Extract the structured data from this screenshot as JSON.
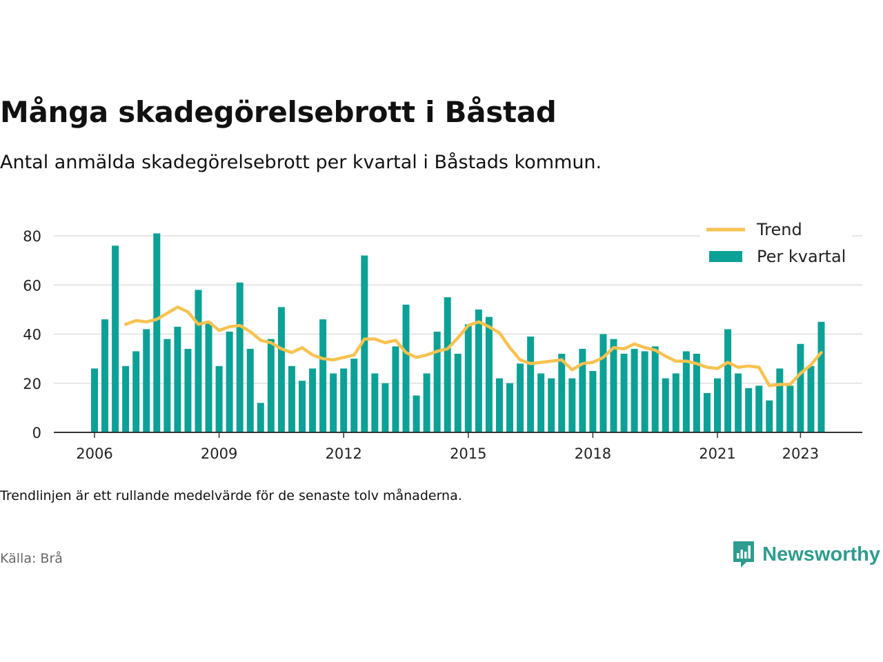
{
  "header": {
    "title": "Många skadegörelsebrott i Båstad",
    "subtitle": "Antal anmälda skadegörelsebrott per kvartal i Båstads kommun."
  },
  "footer": {
    "note": "Trendlinjen är ett rullande medelvärde för de senaste tolv månaderna.",
    "source": "Källa: Brå",
    "logo_text": "Newsworthy"
  },
  "colors": {
    "bars": "#0ca196",
    "trend": "#f7c24f",
    "grid": "#dddddd",
    "axis": "#333333",
    "brand": "#2e9c90"
  },
  "chart_data": {
    "type": "bar",
    "title": "Många skadegörelsebrott i Båstad",
    "xlabel": "",
    "ylabel": "",
    "ylim": [
      0,
      80
    ],
    "y_ticks": [
      0,
      20,
      40,
      60,
      80
    ],
    "x_ticks": [
      "2006",
      "2009",
      "2012",
      "2015",
      "2018",
      "2021",
      "2023"
    ],
    "grid": true,
    "legend_position": "top-right",
    "categories": [
      "2006 Q1",
      "2006 Q2",
      "2006 Q3",
      "2006 Q4",
      "2007 Q1",
      "2007 Q2",
      "2007 Q3",
      "2007 Q4",
      "2008 Q1",
      "2008 Q2",
      "2008 Q3",
      "2008 Q4",
      "2009 Q1",
      "2009 Q2",
      "2009 Q3",
      "2009 Q4",
      "2010 Q1",
      "2010 Q2",
      "2010 Q3",
      "2010 Q4",
      "2011 Q1",
      "2011 Q2",
      "2011 Q3",
      "2011 Q4",
      "2012 Q1",
      "2012 Q2",
      "2012 Q3",
      "2012 Q4",
      "2013 Q1",
      "2013 Q2",
      "2013 Q3",
      "2013 Q4",
      "2014 Q1",
      "2014 Q2",
      "2014 Q3",
      "2014 Q4",
      "2015 Q1",
      "2015 Q2",
      "2015 Q3",
      "2015 Q4",
      "2016 Q1",
      "2016 Q2",
      "2016 Q3",
      "2016 Q4",
      "2017 Q1",
      "2017 Q2",
      "2017 Q3",
      "2017 Q4",
      "2018 Q1",
      "2018 Q2",
      "2018 Q3",
      "2018 Q4",
      "2019 Q1",
      "2019 Q2",
      "2019 Q3",
      "2019 Q4",
      "2020 Q1",
      "2020 Q2",
      "2020 Q3",
      "2020 Q4",
      "2021 Q1",
      "2021 Q2",
      "2021 Q3",
      "2021 Q4",
      "2022 Q1",
      "2022 Q2",
      "2022 Q3",
      "2022 Q4",
      "2023 Q1",
      "2023 Q2",
      "2023 Q3"
    ],
    "series": [
      {
        "name": "Per kvartal",
        "type": "bar",
        "values": [
          26,
          46,
          76,
          27,
          33,
          42,
          81,
          38,
          43,
          34,
          58,
          45,
          27,
          41,
          61,
          34,
          12,
          38,
          51,
          27,
          21,
          26,
          46,
          24,
          26,
          30,
          72,
          24,
          20,
          35,
          52,
          15,
          24,
          41,
          55,
          32,
          44,
          50,
          47,
          22,
          20,
          28,
          39,
          24,
          22,
          32,
          22,
          34,
          25,
          40,
          38,
          32,
          34,
          33,
          35,
          22,
          24,
          33,
          32,
          16,
          22,
          42,
          24,
          18,
          19,
          13,
          26,
          19,
          36,
          27,
          45
        ]
      },
      {
        "name": "Trend",
        "type": "line",
        "values": [
          null,
          null,
          null,
          44,
          45.5,
          45,
          46,
          48.5,
          51,
          49,
          44,
          45,
          41.5,
          43,
          43.5,
          41,
          37.5,
          36.5,
          34,
          32.5,
          34.5,
          31.5,
          30,
          29.5,
          30.5,
          31.5,
          38,
          38,
          36.5,
          37.5,
          32.5,
          30.5,
          31.5,
          33,
          34,
          38.5,
          43.5,
          45,
          43,
          40.5,
          34.5,
          29.5,
          28,
          28.5,
          29,
          29.5,
          25.5,
          28,
          28.5,
          30.5,
          34.5,
          34,
          36,
          34.5,
          33.5,
          31,
          29,
          29,
          28,
          26.5,
          26,
          28.5,
          26.5,
          27,
          26.5,
          19,
          19.5,
          19.5,
          24,
          27.5,
          32.5
        ]
      }
    ]
  }
}
